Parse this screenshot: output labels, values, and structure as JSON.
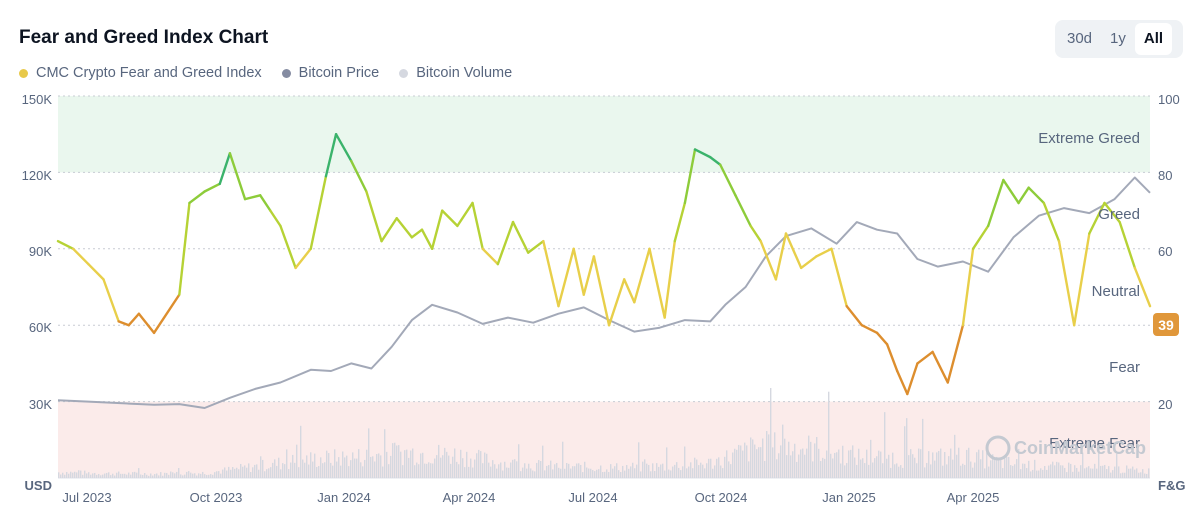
{
  "header": {
    "title": "Fear and Greed Index Chart",
    "ranges": [
      "30d",
      "1y",
      "All"
    ],
    "active_range": "All"
  },
  "legend": [
    {
      "label": "CMC Crypto Fear and Greed Index",
      "color": "#e8c94a"
    },
    {
      "label": "Bitcoin Price",
      "color": "#858ca2"
    },
    {
      "label": "Bitcoin Volume",
      "color": "#d5d8e0"
    }
  ],
  "watermark": "CoinMarketCap",
  "chart_data": {
    "type": "line",
    "title": "Fear and Greed Index Chart",
    "x_ticks": [
      "Jul 2023",
      "Oct 2023",
      "Jan 2024",
      "Apr 2024",
      "Jul 2024",
      "Oct 2024",
      "Jan 2025",
      "Apr 2025"
    ],
    "x_range": [
      2023.46,
      2025.62
    ],
    "y_left": {
      "label": "USD",
      "ticks": [
        "30K",
        "60K",
        "90K",
        "120K",
        "150K"
      ],
      "tick_values": [
        30000,
        60000,
        90000,
        120000,
        150000
      ],
      "range": [
        0,
        150000
      ]
    },
    "y_right": {
      "label": "F&G",
      "ticks": [
        "20",
        "40",
        "60",
        "80",
        "100"
      ],
      "tick_values": [
        20,
        40,
        60,
        80,
        100
      ],
      "range": [
        0,
        100
      ]
    },
    "zones": [
      {
        "label": "Extreme Greed",
        "from": 80,
        "to": 100,
        "color": "#eaf7ee"
      },
      {
        "label": "Greed",
        "from": 60,
        "to": 80
      },
      {
        "label": "Neutral",
        "from": 40,
        "to": 60
      },
      {
        "label": "Fear",
        "from": 20,
        "to": 40
      },
      {
        "label": "Extreme Fear",
        "from": 0,
        "to": 20,
        "color": "#fbebea"
      }
    ],
    "current_value": "39",
    "current_color": "#e0973a",
    "series": [
      {
        "name": "CMC Crypto Fear and Greed Index",
        "axis": "right",
        "x": [
          2023.46,
          2023.49,
          2023.52,
          2023.55,
          2023.58,
          2023.6,
          2023.62,
          2023.65,
          2023.7,
          2023.72,
          2023.75,
          2023.78,
          2023.8,
          2023.83,
          2023.86,
          2023.88,
          2023.9,
          2023.93,
          2023.96,
          2023.99,
          2024.01,
          2024.04,
          2024.07,
          2024.1,
          2024.13,
          2024.16,
          2024.18,
          2024.2,
          2024.22,
          2024.25,
          2024.28,
          2024.3,
          2024.33,
          2024.36,
          2024.39,
          2024.42,
          2024.45,
          2024.48,
          2024.5,
          2024.52,
          2024.55,
          2024.58,
          2024.6,
          2024.63,
          2024.66,
          2024.68,
          2024.7,
          2024.72,
          2024.75,
          2024.77,
          2024.8,
          2024.83,
          2024.85,
          2024.88,
          2024.9,
          2024.93,
          2024.96,
          2024.99,
          2025.02,
          2025.05,
          2025.08,
          2025.1,
          2025.12,
          2025.14,
          2025.16,
          2025.19,
          2025.22,
          2025.25,
          2025.27,
          2025.3,
          2025.33,
          2025.36,
          2025.38,
          2025.41,
          2025.44,
          2025.47,
          2025.5,
          2025.53,
          2025.56,
          2025.59,
          2025.62
        ],
        "values": [
          62,
          60,
          56,
          52,
          41,
          40,
          43,
          38,
          48,
          72,
          75,
          77,
          85,
          73,
          74,
          70,
          66,
          55,
          60,
          79,
          90,
          83,
          75,
          62,
          68,
          63,
          65,
          60,
          70,
          66,
          72,
          60,
          56,
          67,
          59,
          62,
          45,
          60,
          48,
          58,
          40,
          52,
          46,
          60,
          42,
          62,
          72,
          86,
          84,
          82,
          74,
          66,
          62,
          52,
          64,
          55,
          58,
          60,
          45,
          40,
          38,
          35,
          28,
          22,
          30,
          33,
          25,
          40,
          60,
          66,
          78,
          72,
          76,
          72,
          62,
          40,
          64,
          72,
          67,
          55,
          45
        ]
      },
      {
        "name": "Bitcoin Price",
        "axis": "left",
        "x": [
          2023.46,
          2023.52,
          2023.6,
          2023.65,
          2023.7,
          2023.75,
          2023.8,
          2023.85,
          2023.9,
          2023.96,
          2024.0,
          2024.04,
          2024.08,
          2024.12,
          2024.16,
          2024.2,
          2024.25,
          2024.3,
          2024.35,
          2024.4,
          2024.45,
          2024.5,
          2024.55,
          2024.6,
          2024.65,
          2024.7,
          2024.75,
          2024.78,
          2024.82,
          2024.86,
          2024.9,
          2024.95,
          2025.0,
          2025.04,
          2025.08,
          2025.12,
          2025.16,
          2025.2,
          2025.25,
          2025.3,
          2025.35,
          2025.4,
          2025.45,
          2025.5,
          2025.55,
          2025.59,
          2025.62
        ],
        "values": [
          30500,
          30000,
          29200,
          28800,
          29000,
          27500,
          31500,
          35000,
          37500,
          42500,
          42000,
          45000,
          43000,
          51500,
          62000,
          68000,
          65000,
          60500,
          63000,
          61000,
          64500,
          67000,
          62000,
          57500,
          59000,
          62000,
          61500,
          68000,
          75000,
          87000,
          95000,
          98000,
          92000,
          100500,
          97500,
          96000,
          86000,
          83000,
          85000,
          81000,
          94500,
          103000,
          106000,
          104000,
          109500,
          118000,
          112000
        ]
      },
      {
        "name": "Bitcoin Volume",
        "axis": "left",
        "x": [
          2023.46,
          2023.55,
          2023.65,
          2023.75,
          2023.85,
          2023.95,
          2024.05,
          2024.15,
          2024.25,
          2024.35,
          2024.45,
          2024.55,
          2024.65,
          2024.75,
          2024.85,
          2024.95,
          2025.05,
          2025.15,
          2025.25,
          2025.35,
          2025.45,
          2025.55,
          2025.62
        ],
        "values": [
          2500,
          2000,
          1800,
          2200,
          5000,
          8000,
          9000,
          11000,
          10000,
          6000,
          5000,
          4500,
          5000,
          6500,
          14000,
          13000,
          9000,
          8500,
          9500,
          6000,
          4500,
          4000,
          3000
        ]
      }
    ]
  }
}
